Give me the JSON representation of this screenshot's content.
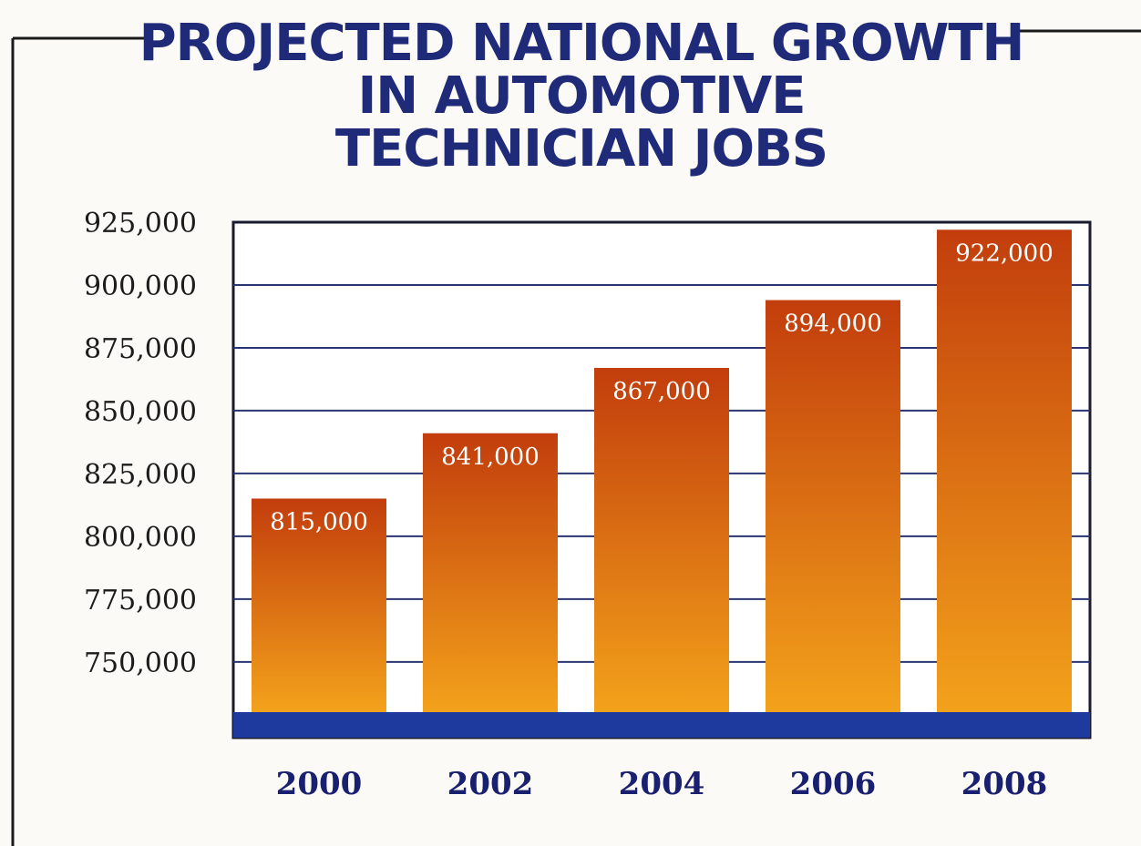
{
  "chart_data": {
    "type": "bar",
    "title": "PROJECTED NATIONAL GROWTH IN AUTOMOTIVE TECHNICIAN JOBS",
    "title_lines": [
      "PROJECTED NATIONAL GROWTH",
      "IN AUTOMOTIVE",
      "TECHNICIAN JOBS"
    ],
    "xlabel": "",
    "ylabel": "",
    "categories": [
      "2000",
      "2002",
      "2004",
      "2006",
      "2008"
    ],
    "values": [
      815000,
      841000,
      867000,
      894000,
      922000
    ],
    "data_labels": [
      "815,000",
      "841,000",
      "867,000",
      "894,000",
      "922,000"
    ],
    "y_ticks": [
      750000,
      775000,
      800000,
      825000,
      850000,
      875000,
      900000,
      925000
    ],
    "y_tick_labels": [
      "750,000",
      "775,000",
      "800,000",
      "825,000",
      "850,000",
      "875,000",
      "900,000",
      "925,000"
    ],
    "ylim": [
      730000,
      925000
    ],
    "grid": true,
    "legend": "none",
    "colors": {
      "bar_top": "#c23d0c",
      "bar_bottom": "#f3a21b",
      "title": "#1f2a78",
      "baseline": "#1f3a9e",
      "axis_labels": "#1a2070",
      "frame": "#1a1a2e"
    }
  }
}
